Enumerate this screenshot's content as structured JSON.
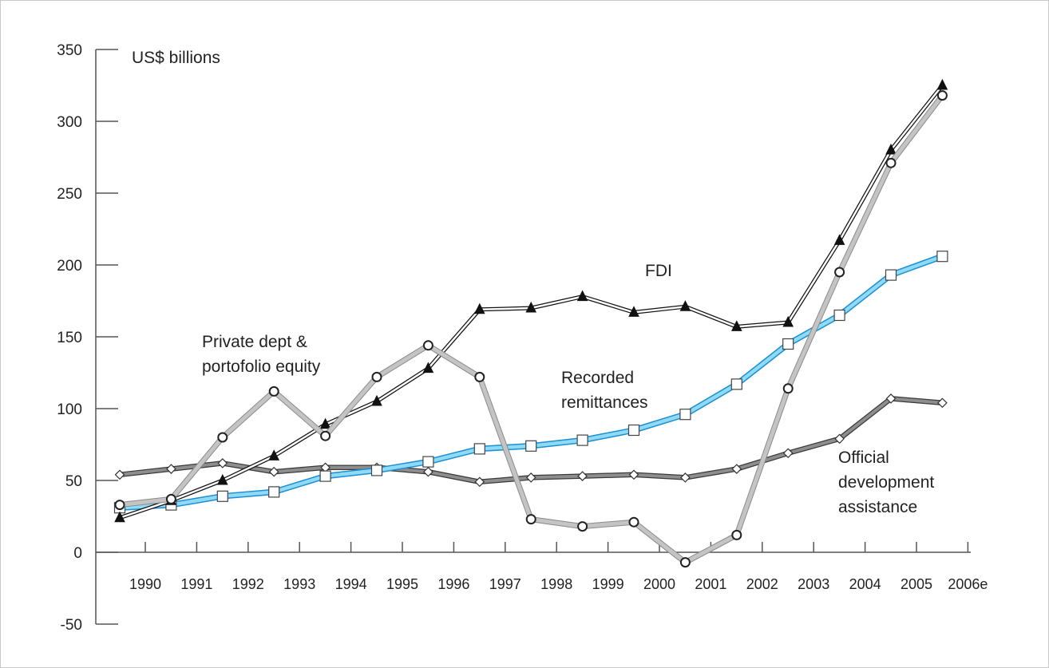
{
  "chart_data": {
    "type": "line",
    "ylabel": "US$ billions",
    "ylim": [
      -50,
      350
    ],
    "yticks": [
      -50,
      0,
      50,
      100,
      150,
      200,
      250,
      300,
      350
    ],
    "yticklabels": [
      "-50",
      "0",
      "50",
      "100",
      "150",
      "200",
      "250",
      "300",
      "350"
    ],
    "categories": [
      "1990",
      "1991",
      "1992",
      "1993",
      "1994",
      "1995",
      "1996",
      "1997",
      "1998",
      "1999",
      "2000",
      "2001",
      "2002",
      "2003",
      "2004",
      "2005",
      "2006e"
    ],
    "grid": false,
    "legend": "none",
    "series": [
      {
        "name": "Official development assistance",
        "label_lines": [
          "Official",
          "development",
          "assistance"
        ],
        "marker": "diamond",
        "color": "#6e6e6e",
        "values": [
          54,
          58,
          62,
          56,
          59,
          59,
          56,
          49,
          52,
          53,
          54,
          52,
          58,
          69,
          79,
          107,
          104
        ]
      },
      {
        "name": "Recorded remittances",
        "label_lines": [
          "Recorded",
          "remittances"
        ],
        "marker": "square",
        "color": "#29aee6",
        "values": [
          31,
          33,
          39,
          42,
          53,
          57,
          63,
          72,
          74,
          78,
          85,
          96,
          117,
          145,
          165,
          193,
          206
        ]
      },
      {
        "name": "FDI",
        "label_lines": [
          "FDI"
        ],
        "marker": "triangle",
        "color": "#111111",
        "values": [
          24,
          36,
          50,
          67,
          89,
          105,
          128,
          169,
          170,
          178,
          167,
          171,
          157,
          160,
          217,
          280,
          325
        ]
      },
      {
        "name": "Private dept & portofolio equity",
        "label_lines": [
          "Private dept &",
          "portofolio equity"
        ],
        "marker": "circle",
        "color": "#b4b4b4",
        "values": [
          33,
          37,
          80,
          112,
          81,
          122,
          144,
          122,
          23,
          18,
          21,
          -7,
          12,
          114,
          195,
          271,
          318
        ]
      }
    ]
  }
}
